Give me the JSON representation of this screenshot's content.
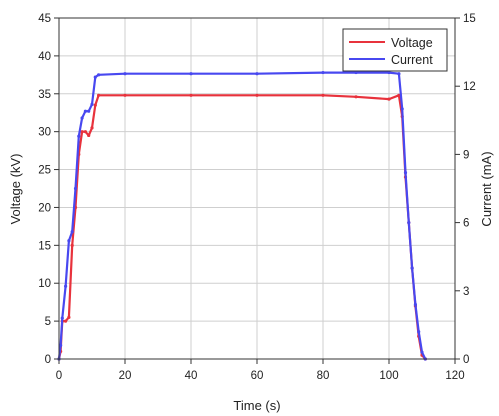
{
  "chart_data": {
    "type": "line",
    "xlabel": "Time (s)",
    "ylabel_left": "Voltage (kV)",
    "ylabel_right": "Current (mA)",
    "xlim": [
      0,
      120
    ],
    "ylim_left": [
      0,
      45
    ],
    "ylim_right": [
      0,
      15
    ],
    "x_ticks": [
      0,
      20,
      40,
      60,
      80,
      100,
      120
    ],
    "y_ticks_left": [
      0,
      5,
      10,
      15,
      20,
      25,
      30,
      35,
      40,
      45
    ],
    "y_ticks_right": [
      0,
      3,
      6,
      9,
      12,
      15
    ],
    "grid": true,
    "legend_position": "top-right",
    "series": [
      {
        "name": "Voltage",
        "axis": "left",
        "color": "#e8323c",
        "x": [
          0,
          0.5,
          1,
          2,
          3,
          4,
          5,
          6,
          7,
          8,
          9,
          10,
          11,
          12,
          20,
          40,
          60,
          80,
          90,
          100,
          103,
          104,
          105,
          106,
          107,
          108,
          109,
          110,
          111
        ],
        "y": [
          0,
          1,
          5,
          5,
          5.5,
          15,
          20,
          27,
          30,
          30,
          29.5,
          30.5,
          33.5,
          34.8,
          34.8,
          34.8,
          34.8,
          34.8,
          34.6,
          34.3,
          34.8,
          32,
          24,
          18,
          12,
          7,
          3,
          0.5,
          0
        ]
      },
      {
        "name": "Current",
        "axis": "right",
        "color": "#4848f0",
        "x": [
          0,
          0.5,
          1,
          2,
          3,
          4,
          5,
          6,
          7,
          8,
          9,
          10,
          11,
          12,
          20,
          40,
          60,
          80,
          90,
          100,
          103,
          104,
          105,
          106,
          107,
          108,
          109,
          110,
          111
        ],
        "y": [
          0,
          0.6,
          1.8,
          3.2,
          5.2,
          5.6,
          7.5,
          9.8,
          10.6,
          10.9,
          10.9,
          11.2,
          12.4,
          12.5,
          12.55,
          12.55,
          12.55,
          12.6,
          12.6,
          12.6,
          12.55,
          11,
          8.2,
          6,
          4,
          2.4,
          1.2,
          0.3,
          0
        ]
      }
    ]
  }
}
